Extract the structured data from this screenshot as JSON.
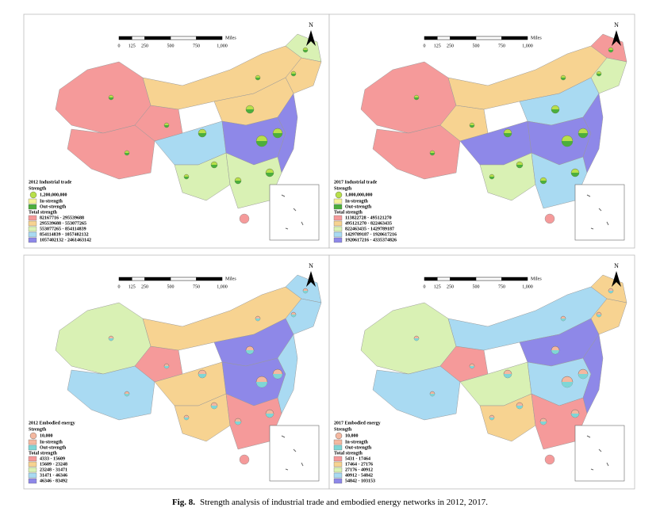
{
  "panels": [
    {
      "title": "2012 Industrial trade",
      "strength_label": "Strength",
      "strength_value": "1,200,000,000",
      "in_label": "In-strength",
      "out_label": "Out-strength",
      "total_label": "Total strength",
      "classes": [
        {
          "label": "82167716 - 295539688",
          "color": "#f59a9a"
        },
        {
          "label": "295539688 - 553077265",
          "color": "#f7d391"
        },
        {
          "label": "553077265 - 854114839",
          "color": "#d9f1b4"
        },
        {
          "label": "854114839 - 1057402132",
          "color": "#a9daf2"
        },
        {
          "label": "1057402132 - 2461463142",
          "color": "#8e88e8"
        }
      ]
    },
    {
      "title": "2017 Industrial trade",
      "strength_label": "Strength",
      "strength_value": "1,000,000,000",
      "in_label": "In-strength",
      "out_label": "Out-strength",
      "total_label": "Total strength",
      "classes": [
        {
          "label": "113822728 - 495121270",
          "color": "#f59a9a"
        },
        {
          "label": "495121270 - 822463435",
          "color": "#f7d391"
        },
        {
          "label": "822463435 - 1429789187",
          "color": "#d9f1b4"
        },
        {
          "label": "1429789187 - 1920617216",
          "color": "#a9daf2"
        },
        {
          "label": "1920617216 - 4335374826",
          "color": "#8e88e8"
        }
      ]
    },
    {
      "title": "2012 Embodied energy",
      "strength_label": "Strength",
      "strength_value": "10,000",
      "in_label": "In-strength",
      "out_label": "Out-strength",
      "total_label": "Total strength",
      "classes": [
        {
          "label": "4333 - 15609",
          "color": "#f59a9a"
        },
        {
          "label": "15609 - 23248",
          "color": "#f7d391"
        },
        {
          "label": "23248 - 31471",
          "color": "#d9f1b4"
        },
        {
          "label": "31471 - 46346",
          "color": "#a9daf2"
        },
        {
          "label": "46346 - 83492",
          "color": "#8e88e8"
        }
      ]
    },
    {
      "title": "2017 Embodied energy",
      "strength_label": "Strength",
      "strength_value": "10,000",
      "in_label": "In-strength",
      "out_label": "Out-strength",
      "total_label": "Total strength",
      "classes": [
        {
          "label": "5431 - 17464",
          "color": "#f59a9a"
        },
        {
          "label": "17464 - 27176",
          "color": "#f7d391"
        },
        {
          "label": "27176 - 40912",
          "color": "#d9f1b4"
        },
        {
          "label": "40912 - 54842",
          "color": "#a9daf2"
        },
        {
          "label": "54842 - 103153",
          "color": "#8e88e8"
        }
      ]
    }
  ],
  "scale_labels": [
    "0",
    "125",
    "250",
    "500",
    "750",
    "1,000"
  ],
  "scale_unit": "Miles",
  "north": "N",
  "caption": {
    "label": "Fig. 8.",
    "text": "Strength analysis of industrial trade and embodied energy networks in 2012, 2017."
  }
}
